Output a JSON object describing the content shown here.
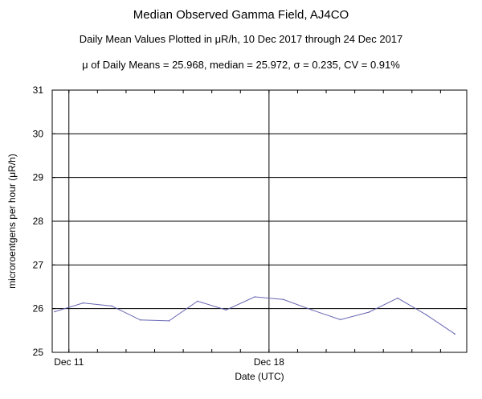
{
  "chart_data": {
    "type": "line",
    "title": "Median Observed Gamma Field, AJ4CO",
    "subtitle": "Daily Mean Values Plotted in μR/h, 10 Dec 2017 through 24 Dec 2017",
    "stats_line": "μ of Daily Means = 25.968,   median = 25.972,   σ = 0.235,   CV = 0.91%",
    "xlabel": "Date (UTC)",
    "ylabel": "microroentgens per hour (μR/h)",
    "ylim": [
      25,
      31
    ],
    "yticks": [
      25,
      26,
      27,
      28,
      29,
      30,
      31
    ],
    "xlim": [
      "2017-12-10 10:00",
      "2017-12-24 22:00"
    ],
    "xticks": [
      {
        "date": "2017-12-11",
        "label": "Dec 11"
      },
      {
        "date": "2017-12-18",
        "label": "Dec 18"
      }
    ],
    "grid": true,
    "line_color": "#6666b3",
    "x": [
      "2017-12-10 12:00",
      "2017-12-11 12:00",
      "2017-12-12 12:00",
      "2017-12-13 12:00",
      "2017-12-14 12:00",
      "2017-12-15 12:00",
      "2017-12-16 12:00",
      "2017-12-17 12:00",
      "2017-12-18 12:00",
      "2017-12-19 12:00",
      "2017-12-20 12:00",
      "2017-12-21 12:00",
      "2017-12-22 12:00",
      "2017-12-23 12:00",
      "2017-12-24 12:00"
    ],
    "values": [
      25.93,
      26.13,
      26.06,
      25.74,
      25.72,
      26.17,
      25.97,
      26.27,
      26.21,
      25.97,
      25.75,
      25.92,
      26.24,
      25.86,
      25.42
    ]
  }
}
